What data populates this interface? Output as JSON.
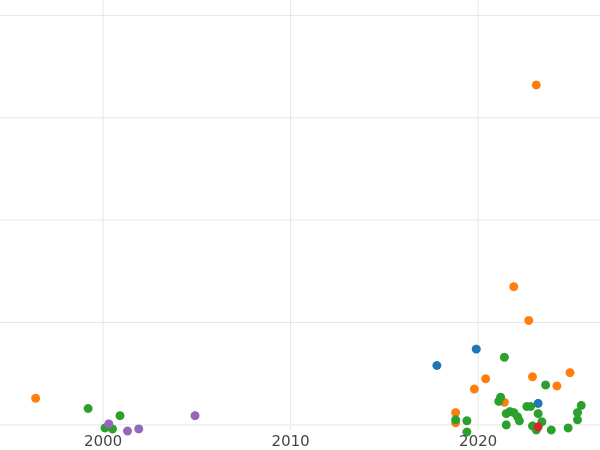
{
  "chart_data": {
    "type": "scatter",
    "title": "",
    "xlabel": "",
    "ylabel": "",
    "xlim": [
      1994.5,
      2026.5
    ],
    "ylim": [
      0,
      420
    ],
    "x_ticks": [
      {
        "value": 2000,
        "label": "2000"
      },
      {
        "value": 2010,
        "label": "2010"
      },
      {
        "value": 2020,
        "label": "2020"
      }
    ],
    "y_gridlines": [
      5,
      105,
      205,
      305,
      405
    ],
    "grid": true,
    "legend": "none",
    "series": [
      {
        "color": "#1f77b4",
        "points": [
          [
            2017.8,
            63
          ],
          [
            2019.9,
            79
          ],
          [
            2023.2,
            26
          ]
        ]
      },
      {
        "color": "#ff7f0e",
        "points": [
          [
            1996.4,
            31
          ],
          [
            2018.8,
            17
          ],
          [
            2018.8,
            7
          ],
          [
            2019.8,
            40
          ],
          [
            2020.4,
            50
          ],
          [
            2021.4,
            27
          ],
          [
            2021.9,
            140
          ],
          [
            2022.7,
            107
          ],
          [
            2022.9,
            52
          ],
          [
            2023.1,
            337
          ],
          [
            2024.2,
            43
          ],
          [
            2024.9,
            56
          ]
        ]
      },
      {
        "color": "#2ca02c",
        "points": [
          [
            1999.2,
            21
          ],
          [
            2000.1,
            2
          ],
          [
            2000.5,
            1
          ],
          [
            2000.9,
            14
          ],
          [
            2018.8,
            10
          ],
          [
            2019.4,
            9
          ],
          [
            2019.4,
            -2
          ],
          [
            2021.1,
            28
          ],
          [
            2021.2,
            32
          ],
          [
            2021.5,
            16
          ],
          [
            2021.5,
            5
          ],
          [
            2021.4,
            71
          ],
          [
            2021.7,
            18
          ],
          [
            2021.9,
            17
          ],
          [
            2022.1,
            13
          ],
          [
            2022.2,
            9
          ],
          [
            2022.6,
            23
          ],
          [
            2022.8,
            23
          ],
          [
            2022.9,
            4
          ],
          [
            2023.1,
            0
          ],
          [
            2023.2,
            16
          ],
          [
            2023.4,
            8
          ],
          [
            2023.6,
            44
          ],
          [
            2023.9,
            0
          ],
          [
            2024.8,
            2
          ],
          [
            2025.3,
            17
          ],
          [
            2025.3,
            10
          ],
          [
            2025.5,
            24
          ]
        ]
      },
      {
        "color": "#d62728",
        "points": [
          [
            2023.2,
            3
          ]
        ]
      },
      {
        "color": "#9467bd",
        "points": [
          [
            2000.3,
            6
          ],
          [
            2001.3,
            -1
          ],
          [
            2001.9,
            1
          ],
          [
            2004.9,
            14
          ]
        ]
      }
    ]
  }
}
